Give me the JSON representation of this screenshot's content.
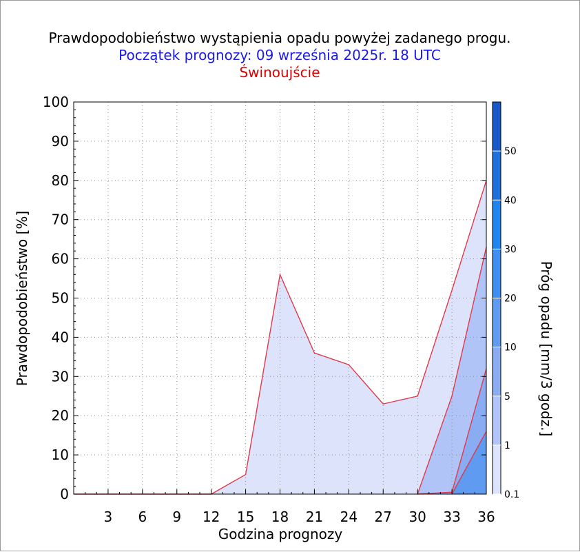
{
  "chart_data": {
    "type": "area",
    "title": "Prawdopodobieństwo wystąpienia opadu powyżej zadanego progu.",
    "subtitle": "Początek prognozy: 09 września 2025r. 18 UTC",
    "location": "Świnoujście",
    "xlabel": "Godzina prognozy",
    "ylabel": "Prawdopodobieństwo [%]",
    "xlim": [
      0,
      36
    ],
    "ylim": [
      0,
      100
    ],
    "xticks": [
      3,
      6,
      9,
      12,
      15,
      18,
      21,
      24,
      27,
      30,
      33,
      36
    ],
    "yticks": [
      0,
      10,
      20,
      30,
      40,
      50,
      60,
      70,
      80,
      90,
      100
    ],
    "x": [
      0,
      3,
      6,
      9,
      12,
      15,
      18,
      21,
      24,
      27,
      30,
      33,
      36
    ],
    "series": [
      {
        "name": "0.1",
        "color": "#dce3fa",
        "values": [
          0,
          0,
          0,
          0,
          0,
          5,
          56,
          36,
          33,
          23,
          25,
          52,
          80
        ]
      },
      {
        "name": "1",
        "color": "#b1c4f7",
        "values": [
          0,
          0,
          0,
          0,
          0,
          0,
          0,
          0,
          0,
          0,
          0,
          25,
          63
        ]
      },
      {
        "name": "5",
        "color": "#8aacf3",
        "values": [
          0,
          0,
          0,
          0,
          0,
          0,
          0,
          0,
          0,
          0,
          0,
          0.5,
          32
        ]
      },
      {
        "name": "10",
        "color": "#5f9bf1",
        "values": [
          0,
          0,
          0,
          0,
          0,
          0,
          0,
          0,
          0,
          0,
          0,
          0,
          16
        ]
      }
    ],
    "grid": true,
    "colorbar": {
      "label": "Próg opadu [mm/3 godz.]",
      "ticks": [
        "0.1",
        "1",
        "5",
        "10",
        "20",
        "30",
        "40",
        "50"
      ],
      "colors": [
        "#dce3fa",
        "#b1c4f7",
        "#8aacf3",
        "#5f9bf1",
        "#3d8ef0",
        "#1e86ee",
        "#1c70dc",
        "#1958c9",
        "#1649b5"
      ]
    },
    "line_color": "#e0394a"
  }
}
